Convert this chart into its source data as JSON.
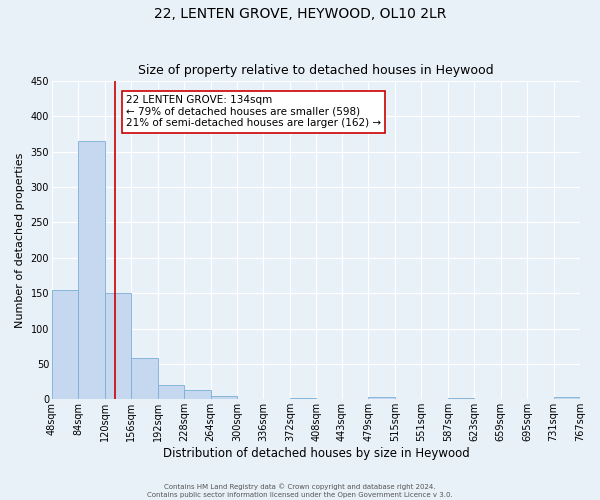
{
  "title": "22, LENTEN GROVE, HEYWOOD, OL10 2LR",
  "subtitle": "Size of property relative to detached houses in Heywood",
  "xlabel": "Distribution of detached houses by size in Heywood",
  "ylabel": "Number of detached properties",
  "footer_line1": "Contains HM Land Registry data © Crown copyright and database right 2024.",
  "footer_line2": "Contains public sector information licensed under the Open Government Licence v 3.0.",
  "annotation_line1": "22 LENTEN GROVE: 134sqm",
  "annotation_line2": "← 79% of detached houses are smaller (598)",
  "annotation_line3": "21% of semi-detached houses are larger (162) →",
  "property_size_sqm": 134,
  "bar_edges": [
    48,
    84,
    120,
    156,
    192,
    228,
    264,
    300,
    336,
    372,
    408,
    443,
    479,
    515,
    551,
    587,
    623,
    659,
    695,
    731,
    767
  ],
  "bar_heights": [
    155,
    365,
    150,
    58,
    20,
    13,
    5,
    0,
    0,
    2,
    0,
    0,
    3,
    0,
    0,
    2,
    0,
    0,
    0,
    3
  ],
  "bar_color": "#c5d8f0",
  "bar_edge_color": "#7bafd4",
  "red_line_x": 134,
  "ylim": [
    0,
    450
  ],
  "yticks": [
    0,
    50,
    100,
    150,
    200,
    250,
    300,
    350,
    400,
    450
  ],
  "background_color": "#e8f0f8",
  "annotation_box_color": "#ffffff",
  "annotation_box_edge": "#cc0000",
  "red_line_color": "#cc0000",
  "title_fontsize": 10,
  "subtitle_fontsize": 9,
  "tick_label_fontsize": 7,
  "ylabel_fontsize": 8,
  "xlabel_fontsize": 8.5,
  "annotation_fontsize": 7.5,
  "footer_fontsize": 5
}
